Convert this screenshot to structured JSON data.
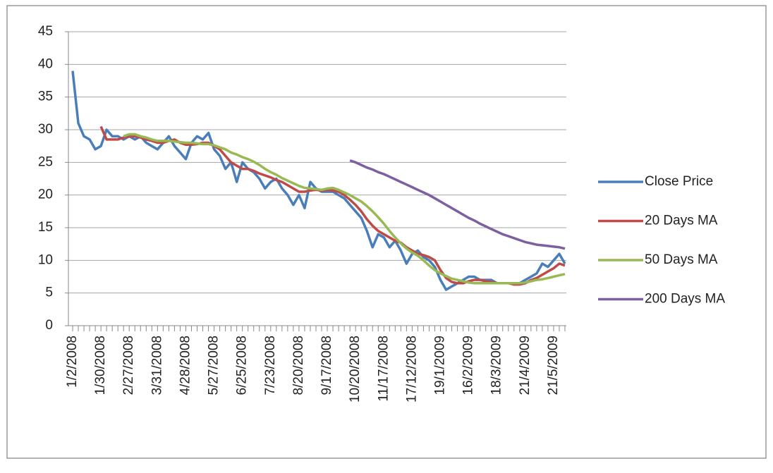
{
  "chart_data": {
    "type": "line",
    "categories": [
      "1/2/2008",
      null,
      null,
      null,
      null,
      "1/30/2008",
      null,
      null,
      null,
      null,
      "2/27/2008",
      null,
      null,
      null,
      null,
      "3/31/2008",
      null,
      null,
      null,
      null,
      "4/28/2008",
      null,
      null,
      null,
      null,
      "5/27/2008",
      null,
      null,
      null,
      null,
      "6/25/2008",
      null,
      null,
      null,
      null,
      "7/23/2008",
      null,
      null,
      null,
      null,
      "8/20/2008",
      null,
      null,
      null,
      null,
      "9/17/2008",
      null,
      null,
      null,
      null,
      "10/20/2008",
      null,
      null,
      null,
      null,
      "11/17/2008",
      null,
      null,
      null,
      null,
      "17/12/2008",
      null,
      null,
      null,
      null,
      "19/1/2009",
      null,
      null,
      null,
      null,
      "16/2/2009",
      null,
      null,
      null,
      null,
      "18/3/2009",
      null,
      null,
      null,
      null,
      "21/4/2009",
      null,
      null,
      null,
      null,
      "21/5/2009",
      null,
      null
    ],
    "series": [
      {
        "name": "Close Price",
        "color": "#4a7ebb",
        "values": [
          39,
          31,
          29,
          28.5,
          27,
          27.5,
          30,
          29,
          29,
          28.5,
          29,
          28.5,
          29,
          28,
          27.5,
          27,
          28,
          29,
          27.5,
          26.5,
          25.5,
          28,
          29,
          28.5,
          29.5,
          27,
          26,
          24,
          25,
          22,
          25,
          24,
          23.5,
          22.5,
          21,
          22,
          22.5,
          21,
          20,
          18.5,
          20,
          18,
          22,
          21,
          20.5,
          20.5,
          20.5,
          20,
          19.5,
          18.5,
          17.5,
          16.5,
          14.5,
          12,
          14,
          13.5,
          12,
          13,
          11.5,
          9.5,
          11,
          11.5,
          10.5,
          10,
          9,
          7,
          5.5,
          6,
          6.5,
          7,
          7.5,
          7.5,
          7,
          7,
          7,
          6.5,
          6.5,
          6.5,
          6.5,
          6.5,
          7,
          7.5,
          8,
          9.5,
          9,
          10,
          11,
          9.5
        ]
      },
      {
        "name": "20 Days MA",
        "color": "#be4b48",
        "values": [
          null,
          null,
          null,
          null,
          null,
          30.5,
          28.5,
          28.5,
          28.5,
          28.8,
          29,
          29,
          28.8,
          28.5,
          28.3,
          28,
          28,
          28.3,
          28.5,
          28,
          27.7,
          27.7,
          27.8,
          28,
          28,
          27.5,
          27,
          26,
          25,
          24.5,
          24,
          24,
          23.7,
          23.3,
          23,
          22.7,
          22.3,
          22,
          21.5,
          21,
          20.5,
          20.5,
          20.7,
          20.8,
          20.7,
          20.8,
          20.7,
          20.5,
          20,
          19.3,
          18.5,
          17.5,
          16.3,
          15.3,
          14.5,
          14,
          13.5,
          13,
          12.7,
          12,
          11.5,
          11,
          10.8,
          10.5,
          10,
          8.5,
          7.3,
          6.7,
          6.5,
          6.5,
          6.8,
          7,
          7,
          6.8,
          6.7,
          6.5,
          6.5,
          6.5,
          6.3,
          6.3,
          6.5,
          7,
          7.3,
          7.8,
          8.3,
          8.8,
          9.5,
          9.2
        ]
      },
      {
        "name": "50 Days MA",
        "color": "#98b954",
        "values": [
          null,
          null,
          null,
          null,
          null,
          null,
          null,
          null,
          null,
          29,
          29.3,
          29.3,
          29,
          28.8,
          28.5,
          28.3,
          28.3,
          28.3,
          28.2,
          28.1,
          28,
          28,
          27.9,
          27.8,
          27.8,
          27.6,
          27.3,
          27,
          26.5,
          26.2,
          25.8,
          25.5,
          25.1,
          24.6,
          24,
          23.5,
          23.1,
          22.6,
          22.2,
          21.8,
          21.4,
          21.1,
          21,
          20.9,
          20.8,
          21,
          21.1,
          20.8,
          20.4,
          20,
          19.5,
          19,
          18.3,
          17.5,
          16.6,
          15.6,
          14.5,
          13.5,
          12.6,
          11.8,
          11.2,
          10.7,
          10,
          9.2,
          8.5,
          8,
          7.6,
          7.2,
          7,
          6.8,
          6.6,
          6.5,
          6.5,
          6.5,
          6.5,
          6.5,
          6.5,
          6.5,
          6.5,
          6.5,
          6.6,
          6.8,
          7,
          7.1,
          7.3,
          7.5,
          7.7,
          7.9
        ]
      },
      {
        "name": "200 Days MA",
        "color": "#7d60a0",
        "values": [
          null,
          null,
          null,
          null,
          null,
          null,
          null,
          null,
          null,
          null,
          null,
          null,
          null,
          null,
          null,
          null,
          null,
          null,
          null,
          null,
          null,
          null,
          null,
          null,
          null,
          null,
          null,
          null,
          null,
          null,
          null,
          null,
          null,
          null,
          null,
          null,
          null,
          null,
          null,
          null,
          null,
          null,
          null,
          null,
          null,
          null,
          null,
          null,
          null,
          25.3,
          25,
          24.6,
          24.2,
          23.9,
          23.5,
          23.2,
          22.8,
          22.4,
          22,
          21.6,
          21.2,
          20.8,
          20.4,
          20,
          19.5,
          19,
          18.5,
          18,
          17.5,
          17,
          16.5,
          16.1,
          15.6,
          15.2,
          14.8,
          14.4,
          14,
          13.7,
          13.4,
          13.1,
          12.8,
          12.6,
          12.4,
          12.3,
          12.2,
          12.1,
          12,
          11.8
        ]
      }
    ],
    "ylim": [
      0,
      45
    ],
    "yticks": [
      0,
      5,
      10,
      15,
      20,
      25,
      30,
      35,
      40,
      45
    ],
    "grid": true,
    "legend": "right"
  }
}
